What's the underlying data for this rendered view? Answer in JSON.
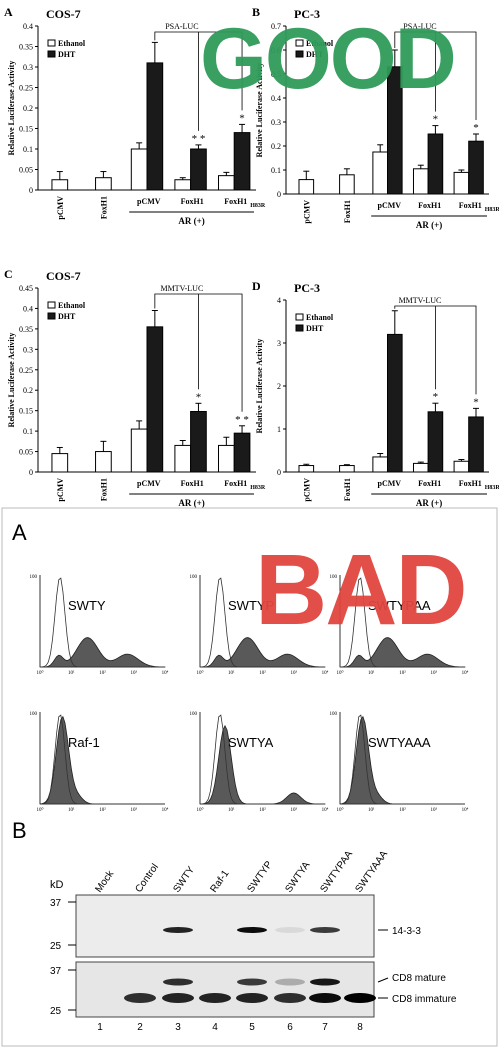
{
  "good_label": "GOOD",
  "bad_label": "BAD",
  "colors": {
    "good": "#2e9b5a",
    "bad": "#e0443e",
    "dht": "#1a1a1a",
    "ethanol": "#ffffff",
    "histogram_fill": "#595959"
  },
  "good_panels": [
    {
      "panel_letter": "A",
      "cell_line": "COS-7",
      "reporter": "PSA-LUC",
      "ylabel": "Relative Luciferase Activity",
      "yticks": [
        "0",
        "0.05",
        "0.1",
        "0.15",
        "0.2",
        "0.25",
        "0.3",
        "0.35",
        "0.4"
      ],
      "group_label": "AR (+)",
      "categories": [
        "pCMV",
        "FoxH1",
        "pCMV",
        "FoxH1",
        "FoxH1"
      ],
      "legend": [
        "Ethanol",
        "DHT"
      ],
      "significance": [
        "",
        "",
        "",
        "* *",
        "*"
      ]
    },
    {
      "panel_letter": "B",
      "cell_line": "PC-3",
      "reporter": "PSA-LUC",
      "ylabel": "Relative Luciferase Activity",
      "yticks": [
        "0",
        "0.1",
        "0.2",
        "0.3",
        "0.4",
        "0.5",
        "0.6",
        "0.7"
      ],
      "group_label": "AR (+)",
      "categories": [
        "pCMV",
        "FoxH1",
        "pCMV",
        "FoxH1",
        "FoxH1"
      ],
      "legend": [
        "Ethanol",
        "DHT"
      ],
      "significance": [
        "",
        "",
        "",
        "*",
        "*"
      ]
    },
    {
      "panel_letter": "C",
      "cell_line": "COS-7",
      "reporter": "MMTV-LUC",
      "ylabel": "Relative Luciferase Activity",
      "yticks": [
        "0",
        "0.05",
        "0.1",
        "0.15",
        "0.2",
        "0.25",
        "0.3",
        "0.35",
        "0.4",
        "0.45"
      ],
      "group_label": "AR (+)",
      "categories": [
        "pCMV",
        "FoxH1",
        "pCMV",
        "FoxH1",
        "FoxH1"
      ],
      "legend": [
        "Ethanol",
        "DHT"
      ],
      "significance": [
        "",
        "",
        "",
        "*",
        "* *"
      ]
    },
    {
      "panel_letter": "D",
      "cell_line": "PC-3",
      "reporter": "MMTV-LUC",
      "ylabel": "Relative Luciferase Activity",
      "yticks": [
        "0",
        "1",
        "2",
        "3",
        "4"
      ],
      "group_label": "AR (+)",
      "categories": [
        "pCMV",
        "FoxH1",
        "pCMV",
        "FoxH1",
        "FoxH1"
      ],
      "legend": [
        "Ethanol",
        "DHT"
      ],
      "significance": [
        "",
        "",
        "",
        "*",
        "*"
      ]
    }
  ],
  "chart_data": [
    {
      "type": "bar",
      "title": "COS-7",
      "ylabel": "Relative Luciferase Activity",
      "ylim": [
        0,
        0.4
      ],
      "categories": [
        "pCMV",
        "FoxH1",
        "pCMV",
        "FoxH1",
        "FoxH1H83R"
      ],
      "series": [
        {
          "name": "Ethanol",
          "values": [
            0.025,
            0.03,
            0.1,
            0.025,
            0.035
          ],
          "errors": [
            0.02,
            0.015,
            0.015,
            0.005,
            0.008
          ]
        },
        {
          "name": "DHT",
          "values": [
            null,
            null,
            0.31,
            0.1,
            0.14
          ],
          "errors": [
            null,
            null,
            0.05,
            0.01,
            0.02
          ]
        }
      ]
    },
    {
      "type": "bar",
      "title": "PC-3",
      "ylabel": "Relative Luciferase Activity",
      "ylim": [
        0,
        0.7
      ],
      "categories": [
        "pCMV",
        "FoxH1",
        "pCMV",
        "FoxH1",
        "FoxH1H83R"
      ],
      "series": [
        {
          "name": "Ethanol",
          "values": [
            0.06,
            0.08,
            0.175,
            0.105,
            0.09
          ],
          "errors": [
            0.035,
            0.025,
            0.03,
            0.015,
            0.01
          ]
        },
        {
          "name": "DHT",
          "values": [
            null,
            null,
            0.53,
            0.25,
            0.22
          ],
          "errors": [
            null,
            null,
            0.07,
            0.035,
            0.03
          ]
        }
      ]
    },
    {
      "type": "bar",
      "title": "COS-7",
      "ylabel": "Relative Luciferase Activity",
      "ylim": [
        0,
        0.45
      ],
      "categories": [
        "pCMV",
        "FoxH1",
        "pCMV",
        "FoxH1",
        "FoxH1H83R"
      ],
      "series": [
        {
          "name": "Ethanol",
          "values": [
            0.045,
            0.05,
            0.105,
            0.065,
            0.065
          ],
          "errors": [
            0.015,
            0.025,
            0.02,
            0.012,
            0.02
          ]
        },
        {
          "name": "DHT",
          "values": [
            null,
            null,
            0.355,
            0.148,
            0.095
          ],
          "errors": [
            null,
            null,
            0.04,
            0.02,
            0.018
          ]
        }
      ]
    },
    {
      "type": "bar",
      "title": "PC-3",
      "ylabel": "Relative Luciferase Activity",
      "ylim": [
        0,
        4
      ],
      "categories": [
        "pCMV",
        "FoxH1",
        "pCMV",
        "FoxH1",
        "FoxH1H83R"
      ],
      "series": [
        {
          "name": "Ethanol",
          "values": [
            0.15,
            0.15,
            0.35,
            0.2,
            0.25
          ],
          "errors": [
            0.03,
            0.02,
            0.08,
            0.03,
            0.04
          ]
        },
        {
          "name": "DHT",
          "values": [
            null,
            null,
            3.2,
            1.4,
            1.28
          ],
          "errors": [
            null,
            null,
            0.55,
            0.2,
            0.2
          ]
        }
      ]
    }
  ],
  "flow": {
    "panel_letter": "A",
    "histograms": [
      {
        "label": "SWTY",
        "profile": "broad"
      },
      {
        "label": "SWTYP",
        "profile": "broad"
      },
      {
        "label": "SWTYPAA",
        "profile": "broad"
      },
      {
        "label": "Raf-1",
        "profile": "none"
      },
      {
        "label": "SWTYA",
        "profile": "weak"
      },
      {
        "label": "SWTYAAA",
        "profile": "none"
      }
    ],
    "axis_ticks": [
      "10⁰",
      "10¹",
      "10²",
      "10³",
      "10⁴"
    ],
    "y_top_tick": "100"
  },
  "blot": {
    "panel_letter": "B",
    "kd_label": "kD",
    "lanes": [
      "Mock",
      "Control",
      "SWTY",
      "Raf-1",
      "SWTYP",
      "SWTYA",
      "SWTYPAA",
      "SWTYAAA"
    ],
    "lane_numbers": [
      "1",
      "2",
      "3",
      "4",
      "5",
      "6",
      "7",
      "8"
    ],
    "top_markers": [
      "37",
      "25"
    ],
    "bottom_markers": [
      "37",
      "25"
    ],
    "band_labels": {
      "top": "14-3-3",
      "mature": "CD8 mature",
      "immature": "CD8 immature"
    },
    "top_bands": [
      0,
      0,
      0.85,
      0,
      0.95,
      0.08,
      0.75,
      0
    ],
    "mature_bands": [
      0,
      0,
      0.8,
      0,
      0.75,
      0.25,
      0.9,
      0
    ],
    "immature_bands": [
      0,
      0.8,
      0.85,
      0.85,
      0.85,
      0.8,
      0.95,
      1
    ]
  }
}
